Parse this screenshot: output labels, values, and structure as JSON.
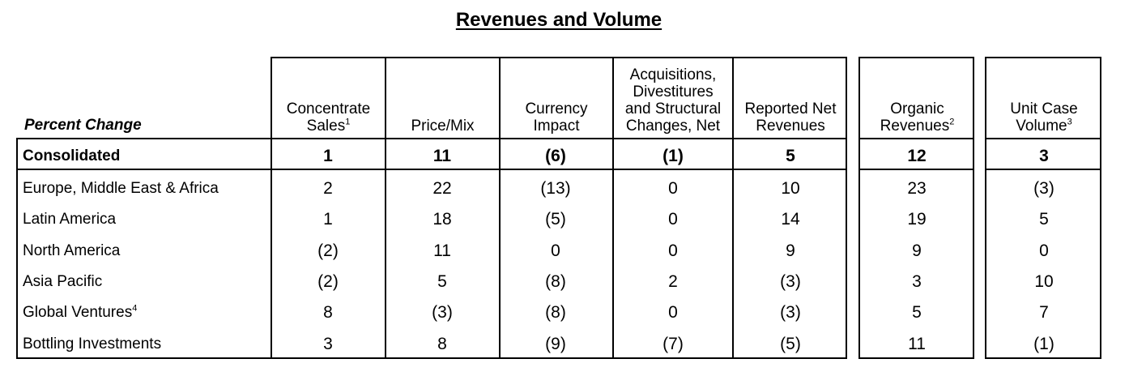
{
  "title": "Revenues and Volume",
  "row_header_label": "Percent Change",
  "columns": [
    {
      "label": "Concentrate Sales",
      "lines": [
        "Concentrate",
        "Sales"
      ],
      "footnote": "1"
    },
    {
      "label": "Price/Mix",
      "lines": [
        "Price/Mix"
      ],
      "footnote": ""
    },
    {
      "label": "Currency Impact",
      "lines": [
        "Currency",
        "Impact"
      ],
      "footnote": ""
    },
    {
      "label": "Acquisitions, Divestitures and Structural Changes, Net",
      "lines": [
        "Acquisitions,",
        "Divestitures",
        "and Structural",
        "Changes, Net"
      ],
      "footnote": ""
    },
    {
      "label": "Reported Net Revenues",
      "lines": [
        "Reported Net",
        "Revenues"
      ],
      "footnote": ""
    },
    {
      "label": "Organic Revenues",
      "lines": [
        "Organic",
        "Revenues"
      ],
      "footnote": "2"
    },
    {
      "label": "Unit Case Volume",
      "lines": [
        "Unit Case",
        "Volume"
      ],
      "footnote": "3"
    }
  ],
  "rows": [
    {
      "label": "Consolidated",
      "footnote": "",
      "bold": true,
      "values": [
        "1",
        "11",
        "(6)",
        "(1)",
        "5",
        "12",
        "3"
      ]
    },
    {
      "label": "Europe, Middle East & Africa",
      "footnote": "",
      "bold": false,
      "values": [
        "2",
        "22",
        "(13)",
        "0",
        "10",
        "23",
        "(3)"
      ]
    },
    {
      "label": "Latin America",
      "footnote": "",
      "bold": false,
      "values": [
        "1",
        "18",
        "(5)",
        "0",
        "14",
        "19",
        "5"
      ]
    },
    {
      "label": "North America",
      "footnote": "",
      "bold": false,
      "values": [
        "(2)",
        "11",
        "0",
        "0",
        "9",
        "9",
        "0"
      ]
    },
    {
      "label": "Asia Pacific",
      "footnote": "",
      "bold": false,
      "values": [
        "(2)",
        "5",
        "(8)",
        "2",
        "(3)",
        "3",
        "10"
      ]
    },
    {
      "label": "Global Ventures",
      "footnote": "4",
      "bold": false,
      "values": [
        "8",
        "(3)",
        "(8)",
        "0",
        "(3)",
        "5",
        "7"
      ]
    },
    {
      "label": "Bottling Investments",
      "footnote": "",
      "bold": false,
      "values": [
        "3",
        "8",
        "(9)",
        "(7)",
        "(5)",
        "11",
        "(1)"
      ]
    }
  ]
}
